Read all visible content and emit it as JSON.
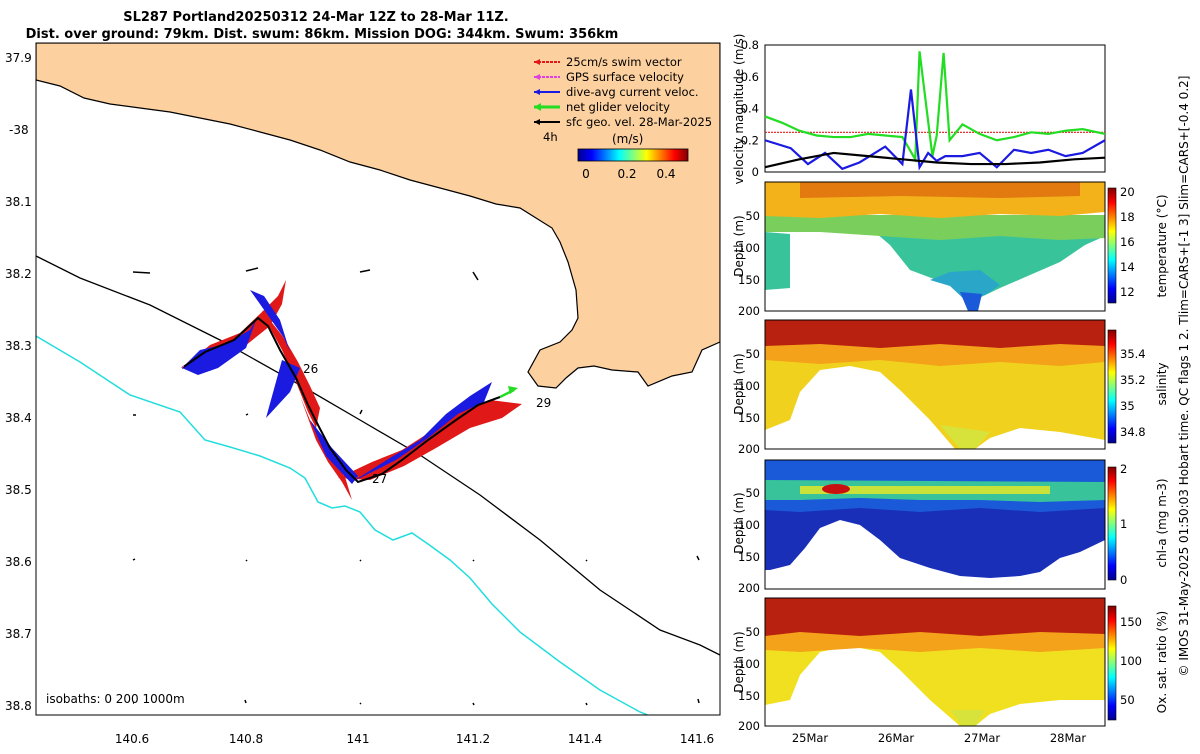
{
  "title": {
    "line1": "SL287 Portland20250312 24-Mar 12Z to 28-Mar 11Z.",
    "line2": "Dist. over ground: 79km. Dist. swum: 86km. Mission DOG: 344km. Swum: 356km"
  },
  "map": {
    "lat_ticks": [
      "37.9",
      "-38",
      "38.1",
      "38.2",
      "38.3",
      "38.4",
      "38.5",
      "38.6",
      "38.7",
      "38.8"
    ],
    "lon_ticks": [
      "140.6",
      "140.8",
      "141",
      "141.2",
      "141.4",
      "141.6"
    ],
    "legend": [
      {
        "label": "25cm/s swim vector",
        "color": "#e01818"
      },
      {
        "label": "GPS surface velocity",
        "color": "#e040e0"
      },
      {
        "label": "dive-avg current veloc.",
        "color": "#1a1ae0"
      },
      {
        "label": "net glider velocity",
        "color": "#22dd22"
      },
      {
        "label": "sfc geo. vel. 28-Mar-2025",
        "color": "#000000"
      }
    ],
    "time_note": "4h",
    "colorbar": {
      "label": "(m/s)",
      "ticks": [
        "0",
        "0.2",
        "0.4"
      ]
    },
    "day_labels": [
      "26",
      "27",
      "29"
    ],
    "isobaths_label": "isobaths: 0  200  1000m",
    "colors": {
      "land": "#fcd09f",
      "isobath_200": "#000000",
      "isobath_1000": "#22dddd"
    }
  },
  "chart_data": [
    {
      "type": "line",
      "title": "velocity magnitude",
      "ylabel": "velocity magnitude (m/s)",
      "ylim": [
        0,
        0.8
      ],
      "yticks": [
        "0",
        "0.2",
        "0.4",
        "0.6",
        "0.8"
      ],
      "xlim_days": [
        24.5,
        28.46
      ],
      "series": [
        {
          "name": "25cm/s swim vector",
          "color": "#e01818",
          "t": [
            24.5,
            28.46
          ],
          "values": [
            0.25,
            0.25
          ]
        },
        {
          "name": "net glider velocity",
          "color": "#22dd22",
          "t": [
            24.5,
            24.7,
            24.9,
            25.1,
            25.3,
            25.5,
            25.7,
            25.9,
            26.1,
            26.25,
            26.3,
            26.45,
            26.5,
            26.58,
            26.65,
            26.8,
            27.0,
            27.2,
            27.4,
            27.6,
            27.8,
            28.0,
            28.2,
            28.46
          ],
          "values": [
            0.35,
            0.31,
            0.26,
            0.23,
            0.22,
            0.22,
            0.24,
            0.23,
            0.22,
            0.08,
            0.76,
            0.1,
            0.23,
            0.75,
            0.2,
            0.3,
            0.24,
            0.2,
            0.22,
            0.25,
            0.24,
            0.26,
            0.27,
            0.24
          ]
        },
        {
          "name": "dive-avg current veloc.",
          "color": "#1a1ae0",
          "t": [
            24.5,
            24.8,
            25.0,
            25.2,
            25.4,
            25.6,
            25.9,
            26.1,
            26.2,
            26.3,
            26.4,
            26.5,
            26.6,
            26.8,
            27.0,
            27.2,
            27.4,
            27.6,
            27.8,
            28.0,
            28.2,
            28.46
          ],
          "values": [
            0.2,
            0.15,
            0.05,
            0.12,
            0.02,
            0.06,
            0.16,
            0.05,
            0.52,
            0.03,
            0.12,
            0.07,
            0.1,
            0.1,
            0.12,
            0.03,
            0.14,
            0.12,
            0.14,
            0.1,
            0.12,
            0.2
          ]
        },
        {
          "name": "sfc geo. vel.",
          "color": "#000000",
          "t": [
            24.5,
            24.9,
            25.3,
            25.7,
            26.1,
            26.5,
            26.9,
            27.3,
            27.7,
            28.1,
            28.46
          ],
          "values": [
            0.03,
            0.08,
            0.12,
            0.1,
            0.08,
            0.06,
            0.05,
            0.05,
            0.06,
            0.08,
            0.09
          ]
        }
      ]
    },
    {
      "type": "heatmap",
      "variable": "temperature",
      "colorbar_label": "temperature (°C)",
      "clim": [
        11,
        20
      ],
      "cticks": [
        "12",
        "14",
        "16",
        "18",
        "20"
      ],
      "ylabel": "Depth (m)",
      "yticks": [
        "50",
        "100",
        "150",
        "200"
      ],
      "ylim": [
        0,
        200
      ]
    },
    {
      "type": "heatmap",
      "variable": "salinity",
      "colorbar_label": "salinity",
      "clim": [
        34.7,
        35.55
      ],
      "cticks": [
        "34.8",
        "35",
        "35.2",
        "35.4"
      ],
      "ylabel": "Depth (m)",
      "yticks": [
        "50",
        "100",
        "150",
        "200"
      ],
      "ylim": [
        0,
        200
      ]
    },
    {
      "type": "heatmap",
      "variable": "chl-a",
      "colorbar_label": "chl-a (mg m-3)",
      "clim": [
        0,
        2
      ],
      "cticks": [
        "0",
        "1",
        "2"
      ],
      "ylabel": "Depth (m)",
      "yticks": [
        "50",
        "100",
        "150",
        "200"
      ],
      "ylim": [
        0,
        200
      ]
    },
    {
      "type": "heatmap",
      "variable": "oxygen saturation",
      "colorbar_label": "Ox. sat. ratio (%)",
      "clim": [
        25,
        175
      ],
      "cticks": [
        "50",
        "100",
        "150"
      ],
      "ylabel": "Depth (m)",
      "yticks": [
        "50",
        "100",
        "150",
        "200"
      ],
      "ylim": [
        0,
        200
      ]
    }
  ],
  "time_axis": {
    "ticks": [
      "25Mar",
      "26Mar",
      "27Mar",
      "28Mar"
    ]
  },
  "side_note": "© IMOS 31-May-2025 01:50:03 Hobart time. QC flags 1  2. Tlim=CARS+[-1 3] Slim=CARS+[-0.4 0.2]"
}
